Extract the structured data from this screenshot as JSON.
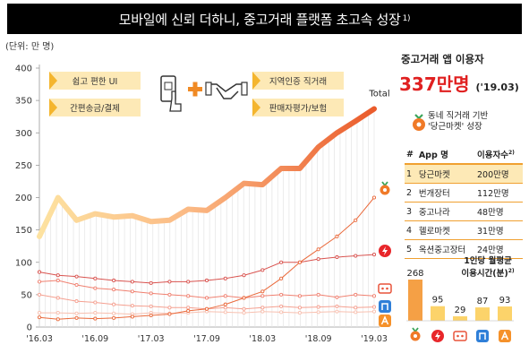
{
  "banner": {
    "title": "모바일에 신뢰 더하니, 중고거래 플랫폼 초고속 성장",
    "footnote": "1)"
  },
  "unit_label": "(단위: 만 명)",
  "features": {
    "left": [
      "쉽고 편한 UI",
      "간편송금/결제"
    ],
    "right": [
      "지역인증 직거래",
      "판매자평가/보험"
    ]
  },
  "right_panel": {
    "users_title": "중고거래 앱 이용자",
    "users_value": "337만명",
    "users_date": "('19.03)",
    "growth_title_line1": "동네 직거래 기반",
    "growth_title_line2": "'당근마켓' 성장",
    "table": {
      "headers": [
        "#",
        "App 명",
        "이용자수"
      ],
      "header_footnote": "2)",
      "rows": [
        {
          "rank": "1",
          "app": "당근마켓",
          "users": "200만명",
          "highlight": true
        },
        {
          "rank": "2",
          "app": "번개장터",
          "users": "112만명",
          "highlight": false
        },
        {
          "rank": "3",
          "app": "중고나라",
          "users": "48만명",
          "highlight": false
        },
        {
          "rank": "4",
          "app": "헬로마켓",
          "users": "31만명",
          "highlight": false
        },
        {
          "rank": "5",
          "app": "옥션중고장터",
          "users": "24만명",
          "highlight": false
        }
      ]
    },
    "usage_title_line1": "1인당 월평균",
    "usage_title_line2": "이용시간(분)",
    "usage_footnote": "2)"
  },
  "chart_data": [
    {
      "type": "line",
      "x": [
        "'16.03",
        "'16.05",
        "'16.07",
        "'16.09",
        "'16.11",
        "'17.01",
        "'17.03",
        "'17.05",
        "'17.07",
        "'17.09",
        "'17.11",
        "'18.01",
        "'18.03",
        "'18.05",
        "'18.07",
        "'18.09",
        "'18.11",
        "'19.01",
        "'19.03"
      ],
      "xticks": [
        "'16.03",
        "'16.09",
        "'17.03",
        "'17.09",
        "'18.03",
        "'18.09",
        "'19.03"
      ],
      "ylim": [
        0,
        400
      ],
      "yticks": [
        0,
        50,
        100,
        150,
        200,
        250,
        300,
        350,
        400
      ],
      "total_label": "Total",
      "colors": {
        "total_start": "#fde2a0",
        "total_end": "#ea5b2b",
        "karrot": "#ea6a3c",
        "bunjang": "#d9534f",
        "joongna": "#f08070",
        "hello": "#f5a090",
        "auction": "#f8c0b0"
      },
      "series": [
        {
          "name": "Total",
          "values": [
            140,
            200,
            165,
            175,
            170,
            172,
            163,
            165,
            182,
            180,
            200,
            222,
            220,
            245,
            245,
            278,
            300,
            318,
            337
          ]
        },
        {
          "values": [
            15,
            12,
            14,
            13,
            14,
            16,
            18,
            20,
            25,
            28,
            35,
            45,
            55,
            75,
            100,
            120,
            140,
            165,
            200
          ]
        },
        {
          "values": [
            85,
            80,
            78,
            75,
            72,
            70,
            68,
            70,
            70,
            72,
            75,
            80,
            88,
            100,
            100,
            105,
            108,
            110,
            112
          ]
        },
        {
          "values": [
            70,
            72,
            65,
            60,
            58,
            55,
            52,
            50,
            48,
            45,
            48,
            45,
            48,
            50,
            48,
            50,
            46,
            50,
            48
          ]
        },
        {
          "values": [
            50,
            45,
            40,
            38,
            35,
            33,
            32,
            30,
            30,
            28,
            30,
            28,
            30,
            32,
            30,
            31,
            32,
            30,
            31
          ]
        },
        {
          "values": [
            22,
            22,
            21,
            22,
            21,
            20,
            22,
            21,
            22,
            24,
            23,
            22,
            24,
            23,
            22,
            23,
            24,
            23,
            24
          ]
        }
      ],
      "end_icons": [
        "carrot-icon",
        "bunjang-icon",
        "joongna-icon",
        "hello-icon",
        "auction-icon"
      ]
    },
    {
      "type": "bar",
      "categories": [
        "당근마켓",
        "번개장터",
        "중고나라",
        "헬로마켓",
        "옥션중고장터"
      ],
      "values": [
        268,
        95,
        29,
        87,
        93
      ],
      "colors": [
        "#f5a045",
        "#fcd36a",
        "#fcd36a",
        "#fcd36a",
        "#fcd36a"
      ],
      "icons": [
        "carrot-icon",
        "bunjang-icon",
        "joongna-icon",
        "hello-icon",
        "auction-icon"
      ]
    }
  ]
}
